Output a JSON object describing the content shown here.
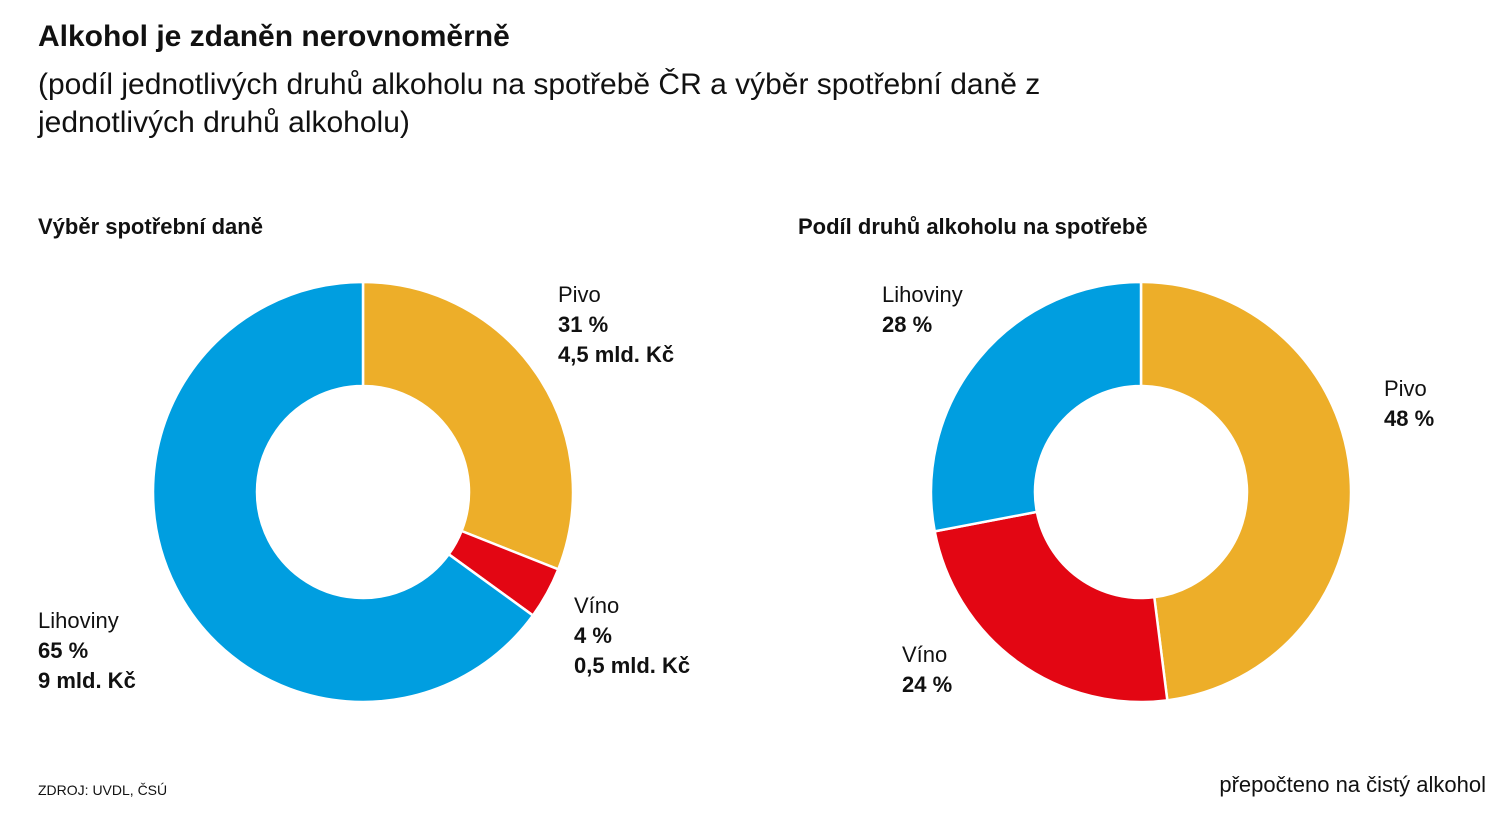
{
  "title": "Alkohol je zdaněn nerovnoměrně",
  "subtitle": "(podíl jednotlivých druhů alkoholu na spotřebě ČR a výběr spotřební daně z jednotlivých druhů alkoholu)",
  "colors": {
    "pivo": "#EDAE29",
    "vino": "#E30613",
    "lihoviny": "#009EE0"
  },
  "chart_data": [
    {
      "type": "pie",
      "donut": true,
      "title": "Výběr spotřební daně",
      "categories": [
        "Pivo",
        "Víno",
        "Lihoviny"
      ],
      "values": [
        31,
        4,
        65
      ],
      "value_labels": [
        "31 %",
        "4 %",
        "65 %"
      ],
      "amounts": [
        "4,5 mld. Kč",
        "0,5 mld. Kč",
        "9 mld. Kč"
      ],
      "colors": [
        "#EDAE29",
        "#E30613",
        "#009EE0"
      ]
    },
    {
      "type": "pie",
      "donut": true,
      "title": "Podíl druhů alkoholu na spotřebě",
      "categories": [
        "Pivo",
        "Víno",
        "Lihoviny"
      ],
      "values": [
        48,
        24,
        28
      ],
      "value_labels": [
        "48 %",
        "24 %",
        "28 %"
      ],
      "colors": [
        "#EDAE29",
        "#E30613",
        "#009EE0"
      ]
    }
  ],
  "source": "ZDROJ: UVDL, ČSÚ",
  "note": "přepočteno na čistý alkohol"
}
